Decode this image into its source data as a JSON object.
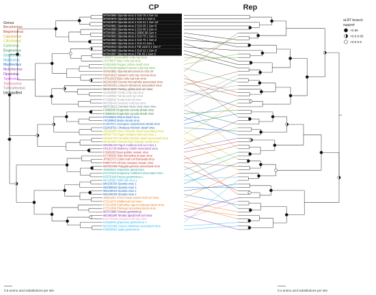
{
  "headers": {
    "left": "CP",
    "right": "Rep"
  },
  "genus_legend": {
    "title": "Genus",
    "items": [
      {
        "label": "Becurtovirus",
        "color": "#a0522d"
      },
      {
        "label": "Begomovirus",
        "color": "#c0392b"
      },
      {
        "label": "Capulavirus",
        "color": "#d4a017"
      },
      {
        "label": "Citlodavirus",
        "color": "#c8c800"
      },
      {
        "label": "Curtovirus",
        "color": "#4caf50"
      },
      {
        "label": "Eragrovirus",
        "color": "#2e7d32"
      },
      {
        "label": "Grablovirus",
        "color": "#26a69a"
      },
      {
        "label": "Maldovirus",
        "color": "#29b6f6"
      },
      {
        "label": "Mastrevirus",
        "color": "#1565c0"
      },
      {
        "label": "Mulcrilevirus",
        "color": "#8e44ad"
      },
      {
        "label": "Opunvirus",
        "color": "#7b1fa2"
      },
      {
        "label": "Topilevirus",
        "color": "#e040fb"
      },
      {
        "label": "Topocuvirus",
        "color": "#f06292"
      },
      {
        "label": "Turncurtovirus",
        "color": "#808080"
      },
      {
        "label": "Unclassified",
        "color": "#000000"
      }
    ]
  },
  "support_legend": {
    "title_line1": "aLRT branch",
    "title_line2": "support",
    "items": [
      ">0.95",
      ">0.9-0.95",
      ">0.8-0.9"
    ]
  },
  "taxa": [
    {
      "label": "MT840905 Opuntia virus 2 S18 75 4 Gen 11",
      "color": "#ffffff",
      "highlight": true
    },
    {
      "label": "MT840876 Opuntia virus 2 S18 3 1 Gen 6",
      "color": "#ffffff",
      "highlight": true
    },
    {
      "label": "MT840879 Opuntia virus 2 S18 41 1 Gen 10",
      "color": "#ffffff",
      "highlight": true
    },
    {
      "label": "MT840891 Opuntia virus 2 S18 25 1 Gen 5",
      "color": "#ffffff",
      "highlight": true
    },
    {
      "label": "MT840898 Opuntia virus 2 S18 40 2 Gen 4",
      "color": "#ffffff",
      "highlight": true
    },
    {
      "label": "MT840901 Opuntia virus 2 DB05 56 Gen 4",
      "color": "#ffffff",
      "highlight": true
    },
    {
      "label": "MT840902 Opuntia virus 2 S18 75 1 Gen 1",
      "color": "#ffffff",
      "highlight": true
    },
    {
      "label": "MT840903 Opuntia virus 2 S18 75 1 Gen 2",
      "color": "#ffffff",
      "highlight": true
    },
    {
      "label": "MT840899 Opuntia virus 2 S18 41 Gen 1",
      "color": "#ffffff",
      "highlight": true
    },
    {
      "label": "MT840910 Opuntia virus 2 TM cacti 3 1 Gen 7",
      "color": "#ffffff",
      "highlight": true
    },
    {
      "label": "MT840888 Opuntia virus 2 S18 12 1 Gen 3",
      "color": "#ffffff",
      "highlight": true
    },
    {
      "label": "MT840897 Opuntia virus 2 TM 40 1 Gen 9",
      "color": "#ffffff",
      "highlight": true
    },
    {
      "label": "U49907 Horseradish curly top virus",
      "color": "#7cb342",
      "highlight": false
    },
    {
      "label": "AF379637 Beet curly top virus",
      "color": "#7cb342",
      "highlight": false
    },
    {
      "label": "EU921828 Pepper yellow dwarf virus",
      "color": "#7cb342",
      "highlight": false
    },
    {
      "label": "GU734126 Spinach severe curly top virus",
      "color": "#4caf50",
      "highlight": false
    },
    {
      "label": "MT840851 Opuntia Becurtovirus S18 40",
      "color": "#a0522d",
      "highlight": false
    },
    {
      "label": "HQ443515 Spinach curly top Arizona virus",
      "color": "#a0522d",
      "highlight": false
    },
    {
      "label": "KF410203 Beet curly top Iran virus",
      "color": "#a0522d",
      "highlight": false
    },
    {
      "label": "MG001960 Exomis microphylla associated virus",
      "color": "#a0522d",
      "highlight": false
    },
    {
      "label": "MG001961 Limeum africanum associated virus",
      "color": "#a0522d",
      "highlight": false
    },
    {
      "label": "MK024536 Parsley yellow leaf curl virus",
      "color": "#5d4037",
      "highlight": false
    },
    {
      "label": "GU456685 Turnip curly top virus",
      "color": "#9e9e9e",
      "highlight": false
    },
    {
      "label": "KC108902 Turnip curly top virus",
      "color": "#9e9e9e",
      "highlight": false
    },
    {
      "label": "KT388086 Turnip leaf roll virus",
      "color": "#9e9e9e",
      "highlight": false
    },
    {
      "label": "MH356443 Sesame curly top virus",
      "color": "#9e9e9e",
      "highlight": false
    },
    {
      "label": "MK673513 Common bean curly stunt virus",
      "color": "#607d8b",
      "highlight": false
    },
    {
      "label": "FJ665630 Eragrostis curvula streak virus",
      "color": "#2e7d32",
      "highlight": false
    },
    {
      "label": "FJ665634 Eragrostis curvula streak virus",
      "color": "#2e7d32",
      "highlight": false
    },
    {
      "label": "EF536860 Wheat dwarf virus",
      "color": "#1565c0",
      "highlight": false
    },
    {
      "label": "AF039952 Maize streak virus",
      "color": "#1565c0",
      "highlight": false
    },
    {
      "label": "KJ437671 Axonopus compressus streak virus",
      "color": "#1565c0",
      "highlight": false
    },
    {
      "label": "DQ458791 Chickpea chlorotic dwarf virus",
      "color": "#1565c0",
      "highlight": false
    },
    {
      "label": "JQ920490 Citrus chlorotic dwarf associated virus",
      "color": "#c8c800",
      "highlight": false
    },
    {
      "label": "MK067723 Paper mulberry leaf curl virus 2",
      "color": "#c8c800",
      "highlight": false
    },
    {
      "label": "MH525729 Camellia chlorotic dwarf associated virus",
      "color": "#c8c800",
      "highlight": false
    },
    {
      "label": "MF344550 Passion fruit chlorotic mottle virus",
      "color": "#c8c800",
      "highlight": false
    },
    {
      "label": "MN095125 Paper mulberry leaf curl virus 1",
      "color": "#8e44ad",
      "highlight": false
    },
    {
      "label": "KR131749 Mulberry crinkle associated virus",
      "color": "#8e44ad",
      "highlight": false
    },
    {
      "label": "FJ665283 Bean golden mosaic virus",
      "color": "#c0392b",
      "highlight": false
    },
    {
      "label": "KC706535 Sida micrantha mosaic virus",
      "color": "#c0392b",
      "highlight": false
    },
    {
      "label": "JF502373 Cotton leaf curl Burewala virus",
      "color": "#c0392b",
      "highlight": false
    },
    {
      "label": "FM877473 African cassava mosaic virus",
      "color": "#c0392b",
      "highlight": false
    },
    {
      "label": "MG001959 Polygala garcinia associated virus",
      "color": "#c0392b",
      "highlight": false
    },
    {
      "label": "JX559642 Grapevine geminivirus",
      "color": "#26a69a",
      "highlight": false
    },
    {
      "label": "KF147918 Grapevine redblotch associated virus",
      "color": "#26a69a",
      "highlight": false
    },
    {
      "label": "KF575184 Prunus geminivirus A",
      "color": "#26a69a",
      "highlight": false
    },
    {
      "label": "MF185002 Wild vitis virus 1",
      "color": "#29b6f6",
      "highlight": false
    },
    {
      "label": "MN100334 Opuntia virus 1",
      "color": "#1565c0",
      "highlight": false
    },
    {
      "label": "MN099640 Opuntia virus 1",
      "color": "#1565c0",
      "highlight": false
    },
    {
      "label": "MN100018 Opuntia virus 1",
      "color": "#1565c0",
      "highlight": false
    },
    {
      "label": "MN100030 Opuntia virus 1",
      "color": "#1565c0",
      "highlight": false
    },
    {
      "label": "JN604201 French bean severe leaf curl virus",
      "color": "#e67e22",
      "highlight": false
    },
    {
      "label": "KT214373 Alfalfa leaf curl virus",
      "color": "#e67e22",
      "highlight": false
    },
    {
      "label": "KT214386 Euphorbia caput-medusae latent virus",
      "color": "#e67e22",
      "highlight": false
    },
    {
      "label": "KT214389 Plantago lanceolata latent virus",
      "color": "#e67e22",
      "highlight": false
    },
    {
      "label": "MF072686 Tomato geminivirus",
      "color": "#7b1fa2",
      "highlight": false
    },
    {
      "label": "MG491195 Tomato apical leaf curl virus",
      "color": "#7b1fa2",
      "highlight": false
    },
    {
      "label": "KX4 Tomato pseudo-curly top virus",
      "color": "#f48fb1",
      "highlight": false
    },
    {
      "label": "KX618694 grapevine geminivirus A",
      "color": "#29b6f6",
      "highlight": false
    },
    {
      "label": "MG001968 Juncus maritimus associated virus",
      "color": "#29b6f6",
      "highlight": false
    },
    {
      "label": "KM386645 Apple geminivirus",
      "color": "#29b6f6",
      "highlight": false
    }
  ],
  "scale_bars": {
    "left": "0.5 amino acid substitutions per site",
    "right": "0.4 amino acid substitutions per site"
  }
}
